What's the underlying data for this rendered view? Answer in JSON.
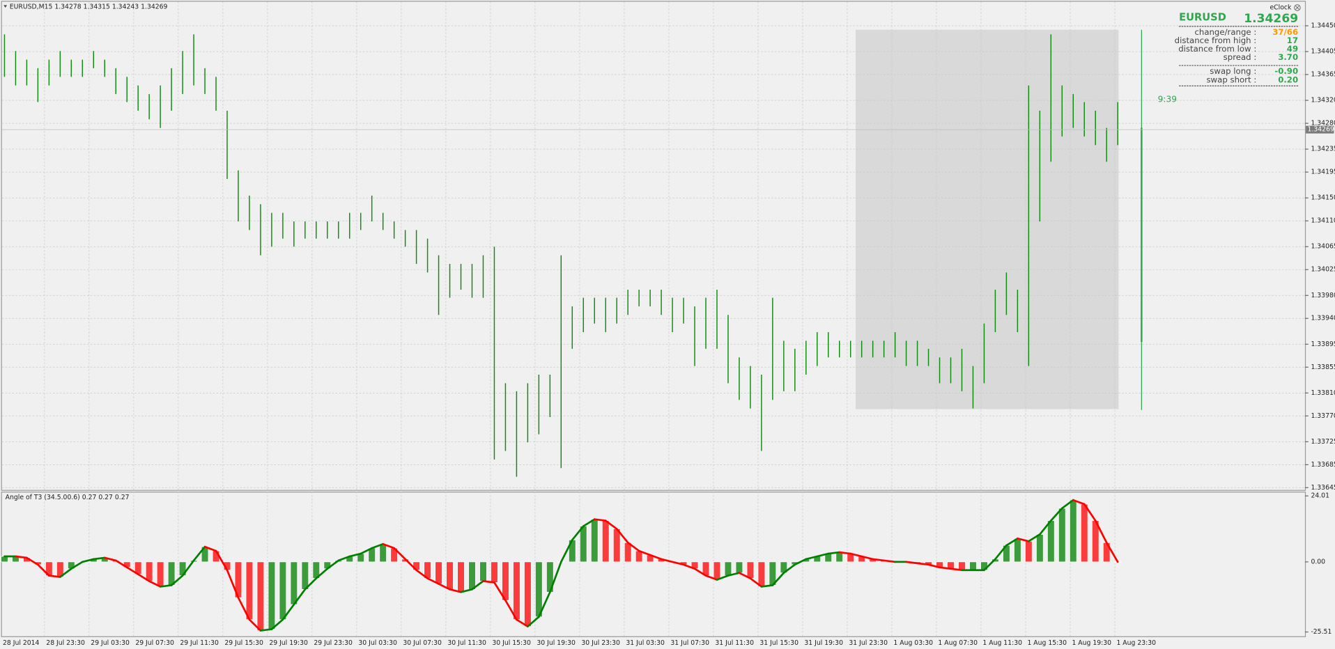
{
  "window": {
    "clock_title": "eClock",
    "timer": "9:39"
  },
  "info_panel": {
    "symbol": "EURUSD",
    "price": "1.34269",
    "rows": [
      {
        "label": "change/range :",
        "value": "37/66"
      },
      {
        "label": "distance from high :",
        "value": "17"
      },
      {
        "label": "distance from low :",
        "value": "49"
      },
      {
        "label": "spread :",
        "value": "3.70"
      }
    ],
    "swap_rows": [
      {
        "label": "swap long :",
        "value": "-0.90"
      },
      {
        "label": "swap short :",
        "value": "0.20"
      }
    ]
  },
  "chart_data": [
    {
      "type": "range_bar",
      "title": "EURUSD,M15  1.34278 1.34315 1.34243 1.34269",
      "color": "#128a12",
      "high": [
        1.34435,
        1.34406,
        1.34391,
        1.34376,
        1.34391,
        1.34406,
        1.34391,
        1.34391,
        1.34406,
        1.34391,
        1.34376,
        1.34361,
        1.34346,
        1.34331,
        1.34346,
        1.34376,
        1.34406,
        1.34435,
        1.34376,
        1.34361,
        1.34302,
        1.34198,
        1.34154,
        1.34139,
        1.34124,
        1.34124,
        1.34109,
        1.34109,
        1.34109,
        1.34109,
        1.34109,
        1.34124,
        1.34124,
        1.34154,
        1.34124,
        1.34109,
        1.34094,
        1.34094,
        1.34079,
        1.3405,
        1.34035,
        1.34035,
        1.34035,
        1.3405,
        1.34065,
        1.33827,
        1.33813,
        1.33827,
        1.33842,
        1.33842,
        1.3405,
        1.33961,
        1.33976,
        1.33976,
        1.33976,
        1.33976,
        1.3399,
        1.3399,
        1.3399,
        1.3399,
        1.33976,
        1.33976,
        1.33961,
        1.33976,
        1.3399,
        1.33946,
        1.33872,
        1.33857,
        1.33842,
        1.33976,
        1.33901,
        1.33887,
        1.33901,
        1.33916,
        1.33916,
        1.33901,
        1.33901,
        1.33901,
        1.33901,
        1.33901,
        1.33916,
        1.33901,
        1.33901,
        1.33887,
        1.33872,
        1.33872,
        1.33887,
        1.33857,
        1.33931,
        1.3399,
        1.3402,
        1.3399,
        1.34346,
        1.34302,
        1.34435,
        1.34346,
        1.34331,
        1.34317,
        1.34302,
        1.34272,
        1.34317
      ],
      "low": [
        1.34361,
        1.34346,
        1.34346,
        1.34317,
        1.34346,
        1.34361,
        1.34361,
        1.34361,
        1.34376,
        1.34361,
        1.34331,
        1.34317,
        1.34302,
        1.34287,
        1.34272,
        1.34302,
        1.34331,
        1.34346,
        1.34331,
        1.34302,
        1.34183,
        1.34109,
        1.34094,
        1.3405,
        1.34065,
        1.34079,
        1.34065,
        1.34079,
        1.34079,
        1.34079,
        1.34079,
        1.34079,
        1.34094,
        1.34109,
        1.34094,
        1.34079,
        1.34065,
        1.34035,
        1.3402,
        1.33946,
        1.33976,
        1.3399,
        1.33976,
        1.33976,
        1.33694,
        1.33709,
        1.33664,
        1.33724,
        1.33738,
        1.33768,
        1.33679,
        1.33887,
        1.33916,
        1.33931,
        1.33916,
        1.33931,
        1.33946,
        1.33961,
        1.33961,
        1.33946,
        1.33916,
        1.33931,
        1.33857,
        1.33887,
        1.33887,
        1.33827,
        1.33798,
        1.33783,
        1.33709,
        1.33798,
        1.33813,
        1.33813,
        1.33842,
        1.33857,
        1.33872,
        1.33872,
        1.33872,
        1.33872,
        1.33872,
        1.33872,
        1.33872,
        1.33857,
        1.33857,
        1.33857,
        1.33827,
        1.33827,
        1.33813,
        1.33783,
        1.33827,
        1.33916,
        1.33946,
        1.33916,
        1.33857,
        1.34109,
        1.34213,
        1.34257,
        1.34272,
        1.34257,
        1.34242,
        1.34213,
        1.34242
      ],
      "ylim": [
        1.33641,
        1.34489
      ],
      "yticks": [
        {
          "value": 1.3445,
          "label": "1.34450"
        },
        1.34405,
        1.34365,
        {
          "value": 1.3432,
          "label": "1.34320"
        },
        {
          "value": 1.3428,
          "label": "1.34280"
        },
        1.34235,
        1.34195,
        {
          "value": 1.3415,
          "label": "1.34150"
        },
        {
          "value": 1.3411,
          "label": "1.34110"
        },
        1.34065,
        1.34025,
        {
          "value": 1.3398,
          "label": "1.33980"
        },
        {
          "value": 1.3394,
          "label": "1.33940"
        },
        1.33895,
        1.33855,
        {
          "value": 1.3381,
          "label": "1.33810"
        },
        {
          "value": 1.3377,
          "label": "1.33770"
        },
        1.33725,
        1.33685,
        1.33645
      ],
      "current_price": 1.34269,
      "grid": true,
      "x_labels": [
        "28 Jul 2014",
        "28 Jul 23:30",
        "29 Jul 03:30",
        "29 Jul 07:30",
        "29 Jul 11:30",
        "29 Jul 15:30",
        "29 Jul 19:30",
        "29 Jul 23:30",
        "30 Jul 03:30",
        "30 Jul 07:30",
        "30 Jul 11:30",
        "30 Jul 15:30",
        "30 Jul 19:30",
        "30 Jul 23:30",
        "31 Jul 03:30",
        "31 Jul 07:30",
        "31 Jul 11:30",
        "31 Jul 15:30",
        "31 Jul 19:30",
        "31 Jul 23:30",
        "1 Aug 03:30",
        "1 Aug 07:30",
        "1 Aug 11:30",
        "1 Aug 15:30",
        "1 Aug 19:30",
        "1 Aug 23:30"
      ]
    },
    {
      "type": "histogram",
      "title": "Angle of T3 (34.5.00.6) 0.27 0.27 0.27",
      "up_color": "#008000",
      "down_color": "#ff0000",
      "values": [
        2,
        2,
        1.5,
        -1,
        -5,
        -5.5,
        -2.5,
        0,
        1,
        1.5,
        0.5,
        -2,
        -4.5,
        -7,
        -9,
        -8.5,
        -5,
        0.5,
        5.5,
        4,
        -3,
        -13,
        -21,
        -25,
        -24.5,
        -21,
        -15.5,
        -10,
        -6,
        -2.5,
        0.5,
        2,
        3,
        5,
        6.5,
        5,
        1,
        -3,
        -6,
        -8,
        -10,
        -11,
        -10,
        -7,
        -7.5,
        -14,
        -21,
        -23.5,
        -20,
        -11,
        0,
        8,
        13,
        15.5,
        15,
        12,
        7,
        4,
        2.5,
        1,
        0,
        -1,
        -2.5,
        -5,
        -6.5,
        -5,
        -4,
        -6,
        -9,
        -8.5,
        -4,
        -1,
        1,
        2,
        3,
        3.5,
        3,
        2,
        1,
        0.5,
        0,
        0,
        -0.5,
        -1,
        -2,
        -2.5,
        -3,
        -3,
        -3,
        1,
        6,
        8.5,
        7.5,
        10,
        15,
        19.5,
        22.5,
        21,
        15,
        7,
        0
      ],
      "ylim": [
        -27.06,
        25.25
      ],
      "yticks": [
        24.01,
        {
          "value": 0,
          "label": "0.00"
        },
        -25.51
      ]
    }
  ]
}
